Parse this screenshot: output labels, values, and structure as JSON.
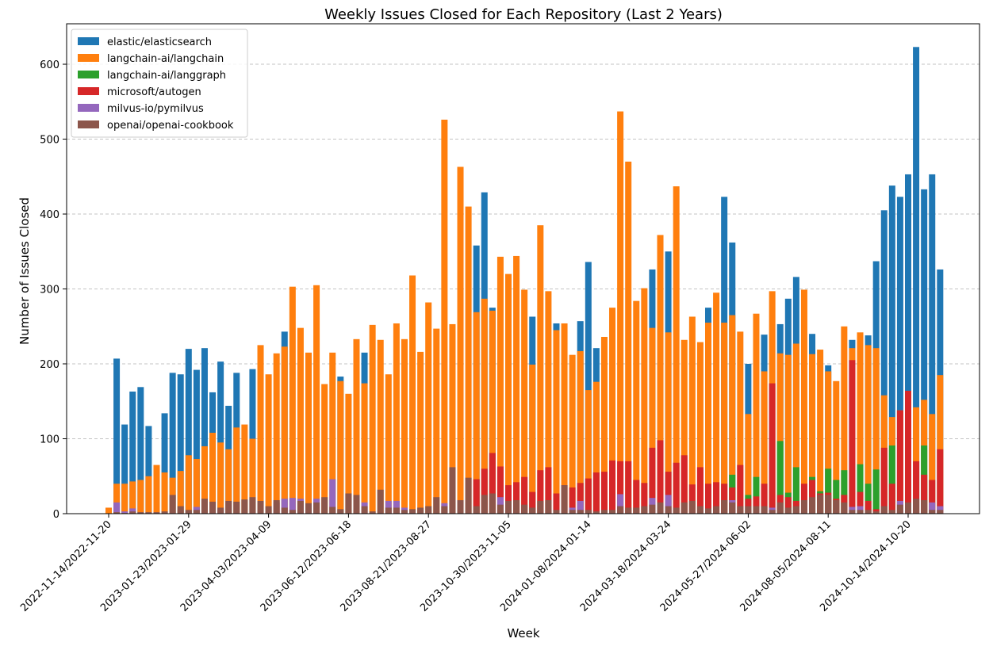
{
  "chart_data": {
    "type": "bar",
    "title": "Weekly Issues Closed for Each Repository (Last 2 Years)",
    "x_label": "Week",
    "y_label": "Number of Issues Closed",
    "legend": "upper left",
    "grid": true,
    "ylim": [
      0,
      654
    ],
    "yticks": [
      0,
      100,
      200,
      300,
      400,
      500,
      600
    ],
    "categories": [
      "2022-11-14/2022-11-20",
      null,
      null,
      null,
      null,
      null,
      null,
      null,
      null,
      null,
      "2023-01-23/2023-01-29",
      null,
      null,
      null,
      null,
      null,
      null,
      null,
      null,
      null,
      "2023-04-03/2023-04-09",
      null,
      null,
      null,
      null,
      null,
      null,
      null,
      null,
      null,
      "2023-06-12/2023-06-18",
      null,
      null,
      null,
      null,
      null,
      null,
      null,
      null,
      null,
      "2023-08-21/2023-08-27",
      null,
      null,
      null,
      null,
      null,
      null,
      null,
      null,
      null,
      "2023-10-30/2023-11-05",
      null,
      null,
      null,
      null,
      null,
      null,
      null,
      null,
      null,
      "2024-01-08/2024-01-14",
      null,
      null,
      null,
      null,
      null,
      null,
      null,
      null,
      null,
      "2024-03-18/2024-03-24",
      null,
      null,
      null,
      null,
      null,
      null,
      null,
      null,
      null,
      "2024-05-27/2024-06-02",
      null,
      null,
      null,
      null,
      null,
      null,
      null,
      null,
      null,
      "2024-08-05/2024-08-11",
      null,
      null,
      null,
      null,
      null,
      null,
      null,
      null,
      null,
      "2024-10-14/2024-10-20",
      null,
      null,
      null,
      null
    ],
    "series": [
      {
        "name": "elastic/elasticsearch",
        "color": "#1f77b4",
        "values": [
          0,
          207,
          119,
          163,
          169,
          117,
          0,
          134,
          188,
          186,
          220,
          192,
          221,
          162,
          203,
          144,
          188,
          0,
          193,
          0,
          0,
          0,
          243,
          0,
          0,
          0,
          0,
          0,
          0,
          183,
          0,
          0,
          215,
          0,
          0,
          0,
          0,
          0,
          0,
          0,
          0,
          0,
          0,
          0,
          0,
          0,
          358,
          429,
          275,
          0,
          0,
          0,
          0,
          263,
          0,
          0,
          254,
          0,
          0,
          257,
          336,
          221,
          0,
          0,
          0,
          0,
          0,
          0,
          326,
          0,
          350,
          0,
          0,
          0,
          0,
          275,
          0,
          423,
          362,
          0,
          200,
          0,
          239,
          0,
          253,
          287,
          316,
          0,
          240,
          0,
          198,
          0,
          0,
          232,
          0,
          238,
          337,
          405,
          438,
          423,
          453,
          623,
          433,
          453,
          326
        ]
      },
      {
        "name": "langchain-ai/langchain",
        "color": "#ff7f0e",
        "values": [
          8,
          40,
          40,
          43,
          45,
          50,
          65,
          55,
          48,
          57,
          78,
          73,
          90,
          108,
          95,
          86,
          115,
          119,
          100,
          225,
          186,
          214,
          223,
          303,
          248,
          215,
          305,
          173,
          215,
          177,
          160,
          233,
          174,
          252,
          232,
          186,
          254,
          233,
          318,
          216,
          282,
          247,
          526,
          253,
          463,
          410,
          269,
          287,
          271,
          343,
          320,
          344,
          299,
          199,
          385,
          297,
          245,
          254,
          212,
          217,
          165,
          176,
          236,
          275,
          537,
          470,
          284,
          301,
          248,
          372,
          242,
          437,
          232,
          263,
          229,
          255,
          295,
          255,
          265,
          243,
          133,
          267,
          190,
          297,
          214,
          212,
          227,
          299,
          213,
          219,
          190,
          177,
          250,
          221,
          242,
          225,
          221,
          158,
          129,
          138,
          140,
          142,
          152,
          133,
          185
        ]
      },
      {
        "name": "langchain-ai/langgraph",
        "color": "#2ca02c",
        "values": [
          0,
          0,
          0,
          0,
          0,
          0,
          0,
          0,
          0,
          0,
          0,
          0,
          0,
          0,
          0,
          0,
          0,
          0,
          0,
          0,
          0,
          0,
          0,
          0,
          0,
          0,
          0,
          0,
          0,
          0,
          0,
          0,
          0,
          0,
          0,
          0,
          0,
          0,
          0,
          0,
          0,
          0,
          0,
          0,
          0,
          0,
          0,
          0,
          0,
          0,
          0,
          0,
          0,
          0,
          0,
          0,
          0,
          0,
          0,
          0,
          0,
          0,
          0,
          0,
          0,
          0,
          0,
          0,
          0,
          0,
          0,
          0,
          0,
          0,
          0,
          0,
          0,
          0,
          52,
          0,
          25,
          49,
          0,
          0,
          97,
          28,
          62,
          0,
          49,
          30,
          60,
          45,
          58,
          0,
          66,
          40,
          59,
          0,
          91,
          0,
          0,
          0,
          91,
          0,
          0
        ]
      },
      {
        "name": "microsoft/autogen",
        "color": "#d62728",
        "values": [
          0,
          0,
          0,
          0,
          0,
          0,
          0,
          0,
          0,
          0,
          0,
          0,
          0,
          0,
          0,
          0,
          0,
          0,
          0,
          0,
          0,
          0,
          0,
          0,
          0,
          0,
          0,
          0,
          0,
          0,
          0,
          0,
          0,
          0,
          0,
          0,
          0,
          0,
          0,
          0,
          0,
          0,
          0,
          0,
          0,
          0,
          46,
          60,
          81,
          63,
          38,
          42,
          49,
          29,
          58,
          62,
          27,
          38,
          35,
          41,
          47,
          55,
          56,
          71,
          70,
          70,
          45,
          41,
          88,
          98,
          56,
          68,
          78,
          39,
          62,
          40,
          42,
          40,
          35,
          65,
          20,
          23,
          40,
          174,
          25,
          22,
          17,
          40,
          45,
          27,
          28,
          20,
          25,
          205,
          29,
          17,
          6,
          88,
          40,
          138,
          164,
          70,
          52,
          45,
          86
        ]
      },
      {
        "name": "milvus-io/pymilvus",
        "color": "#9467bd",
        "values": [
          0,
          15,
          3,
          7,
          0,
          0,
          0,
          0,
          0,
          0,
          0,
          9,
          0,
          0,
          6,
          0,
          0,
          0,
          0,
          0,
          0,
          15,
          20,
          21,
          20,
          0,
          20,
          0,
          46,
          0,
          0,
          0,
          15,
          0,
          0,
          17,
          17,
          8,
          0,
          0,
          0,
          0,
          14,
          0,
          0,
          0,
          0,
          0,
          0,
          22,
          0,
          0,
          0,
          0,
          0,
          0,
          0,
          0,
          8,
          17,
          0,
          0,
          0,
          0,
          26,
          0,
          0,
          0,
          21,
          13,
          25,
          0,
          0,
          0,
          0,
          0,
          0,
          0,
          18,
          0,
          0,
          0,
          0,
          8,
          0,
          0,
          0,
          0,
          0,
          0,
          0,
          0,
          0,
          9,
          10,
          0,
          0,
          0,
          0,
          17,
          0,
          0,
          0,
          15,
          10
        ]
      },
      {
        "name": "openai/openai-cookbook",
        "color": "#8c564b",
        "values": [
          0,
          2,
          1,
          3,
          2,
          2,
          2,
          3,
          25,
          10,
          5,
          5,
          20,
          16,
          8,
          17,
          16,
          19,
          22,
          17,
          10,
          18,
          8,
          5,
          17,
          14,
          15,
          22,
          9,
          6,
          27,
          25,
          10,
          3,
          32,
          8,
          8,
          5,
          6,
          8,
          10,
          22,
          10,
          62,
          18,
          48,
          10,
          25,
          27,
          12,
          17,
          18,
          12,
          8,
          17,
          18,
          5,
          38,
          5,
          5,
          5,
          3,
          5,
          5,
          10,
          8,
          8,
          10,
          12,
          15,
          10,
          8,
          15,
          17,
          10,
          7,
          10,
          18,
          15,
          10,
          10,
          10,
          10,
          5,
          15,
          8,
          10,
          18,
          22,
          25,
          25,
          18,
          15,
          5,
          5,
          5,
          3,
          10,
          5,
          12,
          15,
          20,
          18,
          5,
          5
        ]
      }
    ]
  }
}
